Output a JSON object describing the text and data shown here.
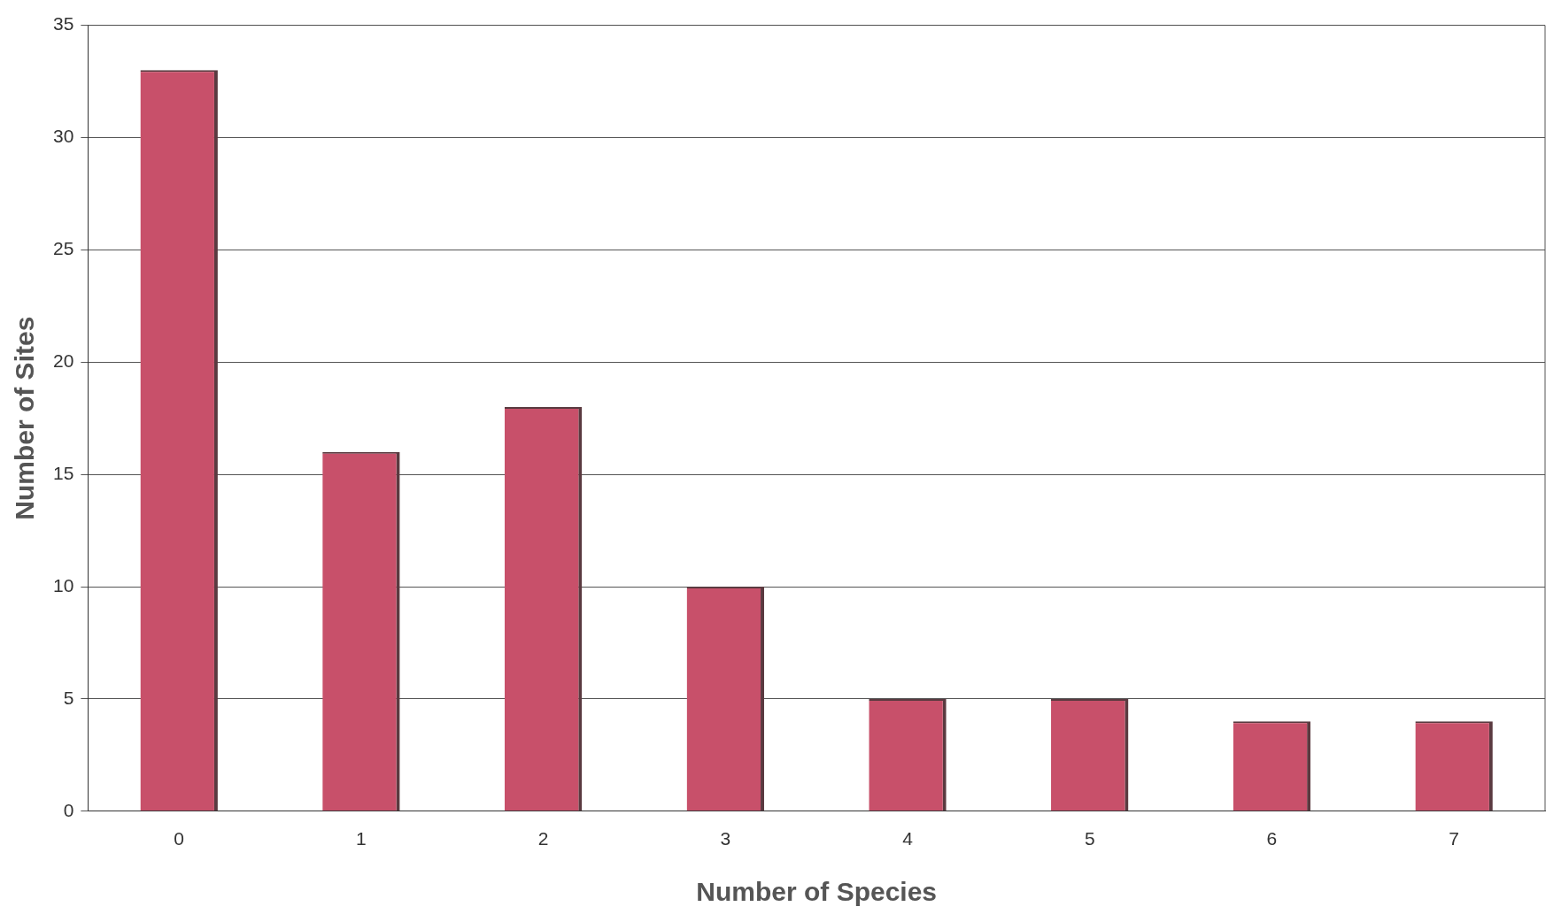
{
  "chart_data": {
    "type": "bar",
    "xlabel": "Number of Species",
    "ylabel": "Number of Sites",
    "categories": [
      "0",
      "1",
      "2",
      "3",
      "4",
      "5",
      "6",
      "7"
    ],
    "values": [
      33,
      16,
      18,
      10,
      5,
      5,
      4,
      4
    ],
    "color": "#c8506a",
    "ylim": [
      0,
      35
    ],
    "yticks": [
      0,
      5,
      10,
      15,
      20,
      25,
      30,
      35
    ],
    "grid": "y",
    "legend": false
  }
}
